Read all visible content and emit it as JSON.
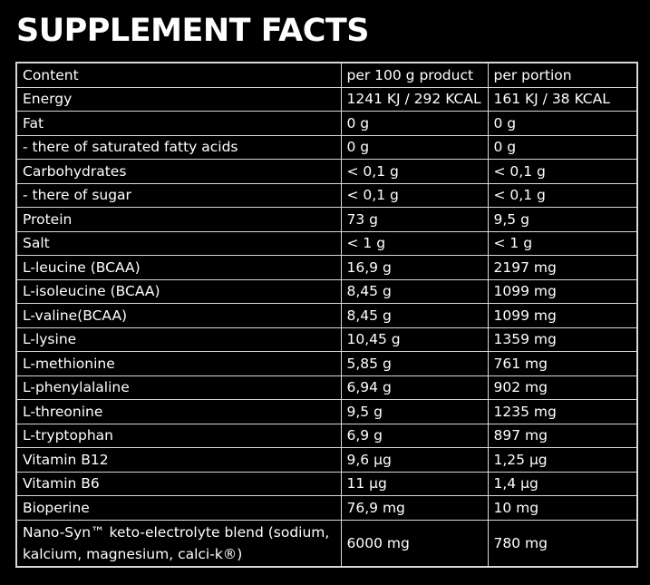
{
  "title": "SUPPLEMENT FACTS",
  "table": {
    "header": [
      "Content",
      "per 100 g product",
      "per portion"
    ],
    "rows": [
      [
        "Energy",
        "1241 KJ / 292 KCAL",
        "161 KJ / 38 KCAL"
      ],
      [
        "Fat",
        "0 g",
        "0 g"
      ],
      [
        "- there of saturated fatty acids",
        "0 g",
        "0 g"
      ],
      [
        "Carbohydrates",
        "< 0,1 g",
        "< 0,1 g"
      ],
      [
        "- there of sugar",
        "< 0,1 g",
        "< 0,1 g"
      ],
      [
        "Protein",
        "73 g",
        "9,5 g"
      ],
      [
        "Salt",
        "< 1 g",
        "< 1 g"
      ],
      [
        "L-leucine (BCAA)",
        "16,9 g",
        "2197 mg"
      ],
      [
        "L-isoleucine (BCAA)",
        "8,45 g",
        "1099 mg"
      ],
      [
        "L-valine(BCAA)",
        "8,45 g",
        "1099 mg"
      ],
      [
        "L-lysine",
        "10,45 g",
        "1359 mg"
      ],
      [
        "L-methionine",
        "5,85 g",
        "761 mg"
      ],
      [
        "L-phenylalaline",
        "6,94 g",
        "902 mg"
      ],
      [
        "L-threonine",
        "9,5 g",
        "1235 mg"
      ],
      [
        "L-tryptophan",
        "6,9 g",
        "897 mg"
      ],
      [
        "Vitamin B12",
        "9,6 µg",
        "1,25 µg"
      ],
      [
        "Vitamin B6",
        "11 µg",
        "1,4 µg"
      ],
      [
        "Bioperine",
        "76,9 mg",
        "10 mg"
      ],
      [
        "Nano-Syn™ keto-electrolyte blend (sodium, kalcium, magnesium, calci-k®)",
        "6000 mg",
        "780 mg"
      ]
    ]
  }
}
